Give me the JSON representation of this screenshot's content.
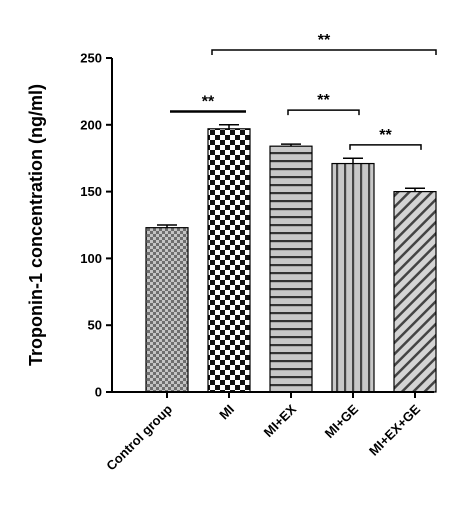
{
  "chart_data": {
    "type": "bar",
    "categories": [
      "Control group",
      "MI",
      "MI+EX",
      "MI+GE",
      "MI+EX+GE"
    ],
    "values": [
      123,
      197,
      184,
      171,
      150
    ],
    "errors": [
      2,
      3,
      1.5,
      4,
      2.5
    ],
    "patterns": [
      "fine-checker",
      "checker",
      "horizontal-lines",
      "vertical-lines",
      "diagonal-lines"
    ],
    "title": "",
    "xlabel": "",
    "ylabel": "Troponin-1 concentration (ng/ml)",
    "ylim": [
      0,
      250
    ],
    "yticks": [
      0,
      50,
      100,
      150,
      200,
      250
    ],
    "grid": false,
    "significance": [
      {
        "from": 0,
        "to": 1,
        "label": "**",
        "y": 210,
        "style": "line"
      },
      {
        "from": 1,
        "to": 4,
        "label": "**",
        "y": 256,
        "style": "bracket"
      },
      {
        "from": 2,
        "to": 3,
        "label": "**",
        "y": 211,
        "style": "bracket"
      },
      {
        "from": 3,
        "to": 4,
        "label": "**",
        "y": 185,
        "style": "bracket"
      }
    ]
  }
}
